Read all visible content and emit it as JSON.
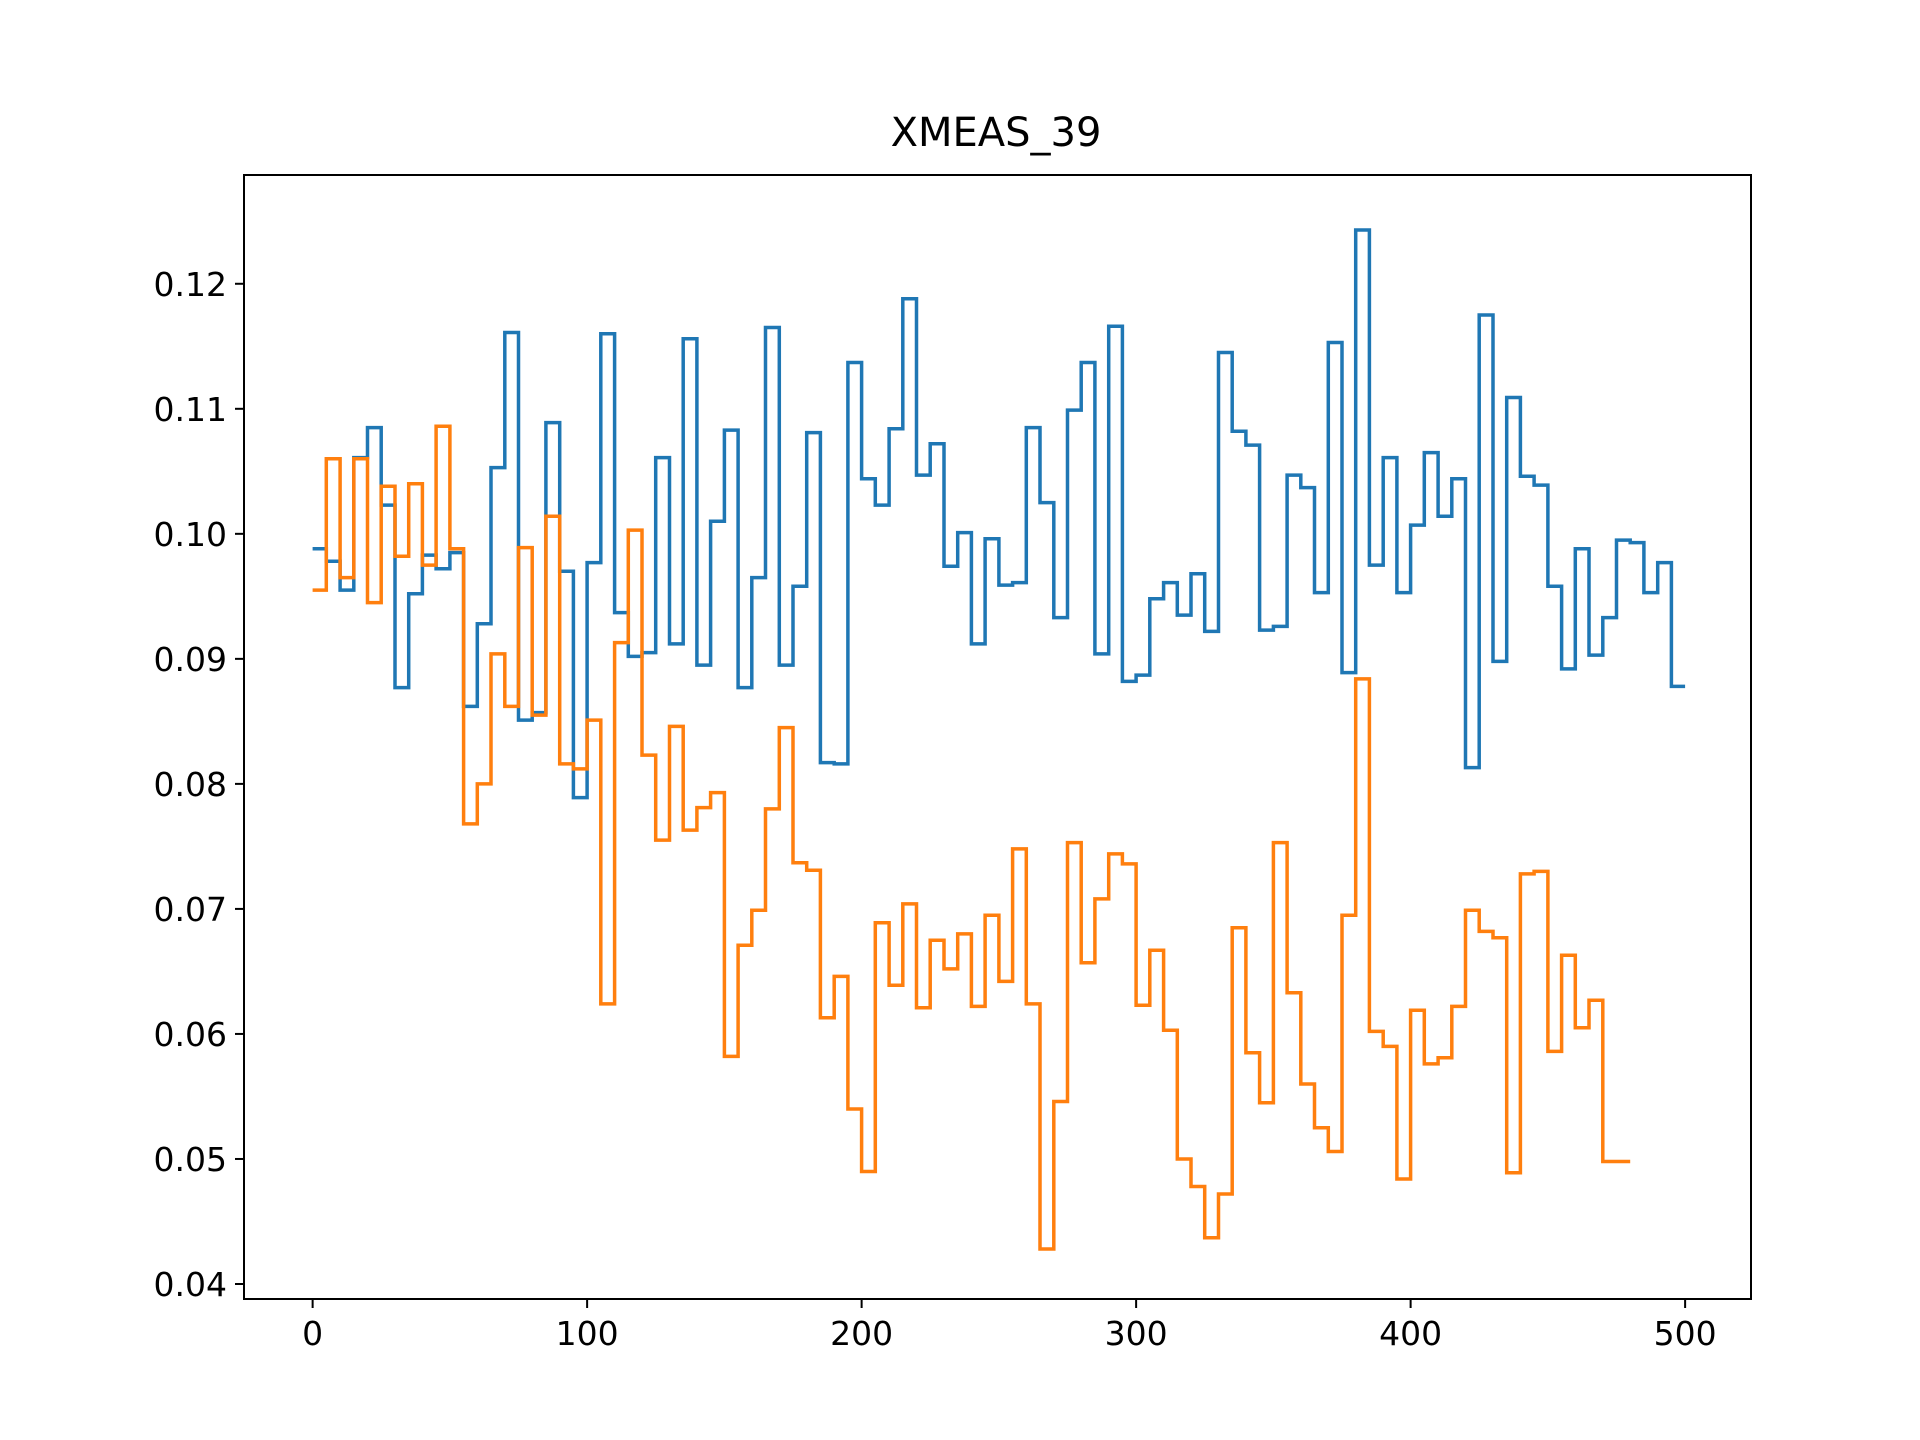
{
  "chart_data": {
    "type": "line",
    "title": "XMEAS_39",
    "xlabel": "",
    "ylabel": "",
    "xlim": [
      -25,
      524
    ],
    "ylim": [
      0.0388,
      0.1287
    ],
    "xticks": [
      0,
      100,
      200,
      300,
      400,
      500
    ],
    "xtick_labels": [
      "0",
      "100",
      "200",
      "300",
      "400",
      "500"
    ],
    "yticks": [
      0.04,
      0.05,
      0.06,
      0.07,
      0.08,
      0.09,
      0.1,
      0.11,
      0.12
    ],
    "ytick_labels": [
      "0.04",
      "0.05",
      "0.06",
      "0.07",
      "0.08",
      "0.09",
      "0.10",
      "0.11",
      "0.12"
    ],
    "grid": false,
    "step_width": 5,
    "series": [
      {
        "color": "#1f77b4",
        "x_start": 0,
        "x_end": 500,
        "values": [
          0.0988,
          0.0978,
          0.0955,
          0.1061,
          0.1085,
          0.1023,
          0.0877,
          0.0952,
          0.0983,
          0.0972,
          0.0985,
          0.0862,
          0.0928,
          0.1053,
          0.1161,
          0.0851,
          0.0857,
          0.1089,
          0.097,
          0.0789,
          0.0977,
          0.116,
          0.0937,
          0.0902,
          0.0905,
          0.1061,
          0.0912,
          0.1156,
          0.0895,
          0.101,
          0.1083,
          0.0877,
          0.0965,
          0.1165,
          0.0895,
          0.0958,
          0.1081,
          0.0817,
          0.0816,
          0.1137,
          0.1044,
          0.1023,
          0.1084,
          0.1188,
          0.1047,
          0.1072,
          0.0974,
          0.1001,
          0.0912,
          0.0996,
          0.0959,
          0.0961,
          0.1085,
          0.1025,
          0.0933,
          0.1099,
          0.1137,
          0.0904,
          0.1166,
          0.0882,
          0.0887,
          0.0948,
          0.0961,
          0.0935,
          0.0968,
          0.0922,
          0.1145,
          0.1082,
          0.1071,
          0.0923,
          0.0926,
          0.1047,
          0.1037,
          0.0953,
          0.1153,
          0.0889,
          0.1243,
          0.0975,
          0.1061,
          0.0953,
          0.1007,
          0.1065,
          0.1014,
          0.1044,
          0.0813,
          0.1175,
          0.0898,
          0.1109,
          0.1046,
          0.1039,
          0.0958,
          0.0892,
          0.0988,
          0.0903,
          0.0933,
          0.0995,
          0.0993,
          0.0953,
          0.0977,
          0.0878
        ]
      },
      {
        "color": "#ff7f0e",
        "x_start": 0,
        "x_end": 480,
        "values": [
          0.0955,
          0.106,
          0.0965,
          0.106,
          0.0945,
          0.1038,
          0.0982,
          0.104,
          0.0975,
          0.1086,
          0.0988,
          0.0768,
          0.08,
          0.0904,
          0.0862,
          0.0989,
          0.0855,
          0.1014,
          0.0816,
          0.0812,
          0.0851,
          0.0624,
          0.0913,
          0.1003,
          0.0823,
          0.0755,
          0.0846,
          0.0763,
          0.0781,
          0.0793,
          0.0582,
          0.0671,
          0.0699,
          0.078,
          0.0845,
          0.0737,
          0.0731,
          0.0613,
          0.0646,
          0.054,
          0.049,
          0.0689,
          0.0639,
          0.0704,
          0.0621,
          0.0675,
          0.0652,
          0.068,
          0.0622,
          0.0695,
          0.0642,
          0.0748,
          0.0624,
          0.0428,
          0.0546,
          0.0753,
          0.0657,
          0.0708,
          0.0744,
          0.0736,
          0.0623,
          0.0667,
          0.0603,
          0.05,
          0.0478,
          0.0437,
          0.0472,
          0.0685,
          0.0585,
          0.0545,
          0.0753,
          0.0633,
          0.056,
          0.0525,
          0.0506,
          0.0695,
          0.0884,
          0.0602,
          0.059,
          0.0484,
          0.0619,
          0.0576,
          0.0581,
          0.0622,
          0.0699,
          0.0682,
          0.0677,
          0.0489,
          0.0728,
          0.073,
          0.0586,
          0.0663,
          0.0605,
          0.0627,
          0.0498,
          0.0498
        ]
      }
    ]
  }
}
